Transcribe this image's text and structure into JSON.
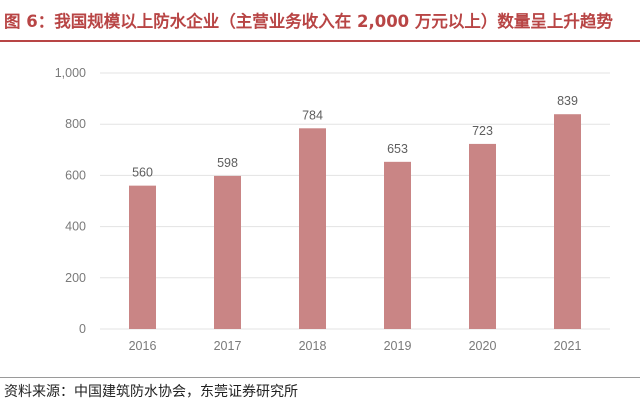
{
  "title": "图 6：我国规模以上防水企业（主营业务收入在 2,000 万元以上）数量呈上升趋势",
  "source": "资料来源：中国建筑防水协会，东莞证券研究所",
  "colors": {
    "title": "#b84545",
    "bar": "#c98585",
    "grid": "#e3e3e3"
  },
  "chart_data": {
    "type": "bar",
    "title": "",
    "xlabel": "",
    "ylabel": "",
    "categories": [
      "2016",
      "2017",
      "2018",
      "2019",
      "2020",
      "2021"
    ],
    "values": [
      560,
      598,
      784,
      653,
      723,
      839
    ],
    "data_labels": [
      "560",
      "598",
      "784",
      "653",
      "723",
      "839"
    ],
    "ylim": [
      0,
      1000
    ],
    "yticks": [
      0,
      200,
      400,
      600,
      800,
      1000
    ],
    "ytick_labels": [
      "0",
      "200",
      "400",
      "600",
      "800",
      "1,000"
    ],
    "grid": true,
    "legend": "none"
  }
}
